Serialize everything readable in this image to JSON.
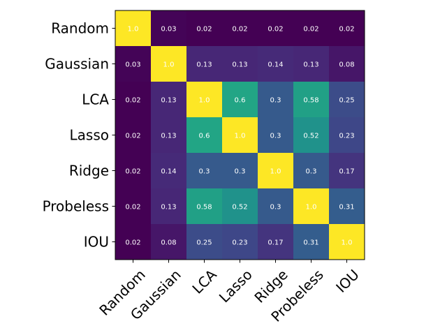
{
  "chart_data": {
    "type": "heatmap",
    "title": "",
    "xlabel": "",
    "ylabel": "",
    "labels": [
      "Random",
      "Gaussian",
      "LCA",
      "Lasso",
      "Ridge",
      "Probeless",
      "IOU"
    ],
    "matrix": [
      [
        1.0,
        0.03,
        0.02,
        0.02,
        0.02,
        0.02,
        0.02
      ],
      [
        0.03,
        1.0,
        0.13,
        0.13,
        0.14,
        0.13,
        0.08
      ],
      [
        0.02,
        0.13,
        1.0,
        0.6,
        0.3,
        0.58,
        0.25
      ],
      [
        0.02,
        0.13,
        0.6,
        1.0,
        0.3,
        0.52,
        0.23
      ],
      [
        0.02,
        0.14,
        0.3,
        0.3,
        1.0,
        0.3,
        0.17
      ],
      [
        0.02,
        0.13,
        0.58,
        0.52,
        0.3,
        1.0,
        0.31
      ],
      [
        0.02,
        0.08,
        0.25,
        0.23,
        0.17,
        0.31,
        1.0
      ]
    ],
    "cell_text": [
      [
        "1.0",
        "0.03",
        "0.02",
        "0.02",
        "0.02",
        "0.02",
        "0.02"
      ],
      [
        "0.03",
        "1.0",
        "0.13",
        "0.13",
        "0.14",
        "0.13",
        "0.08"
      ],
      [
        "0.02",
        "0.13",
        "1.0",
        "0.6",
        "0.3",
        "0.58",
        "0.25"
      ],
      [
        "0.02",
        "0.13",
        "0.6",
        "1.0",
        "0.3",
        "0.52",
        "0.23"
      ],
      [
        "0.02",
        "0.14",
        "0.3",
        "0.3",
        "1.0",
        "0.3",
        "0.17"
      ],
      [
        "0.02",
        "0.13",
        "0.58",
        "0.52",
        "0.3",
        "1.0",
        "0.31"
      ],
      [
        "0.02",
        "0.08",
        "0.25",
        "0.23",
        "0.17",
        "0.31",
        "1.0"
      ]
    ],
    "colormap": "viridis",
    "value_range": [
      0.02,
      1.0
    ],
    "grid": false,
    "legend": "none",
    "x_tick_rotation": "45"
  }
}
